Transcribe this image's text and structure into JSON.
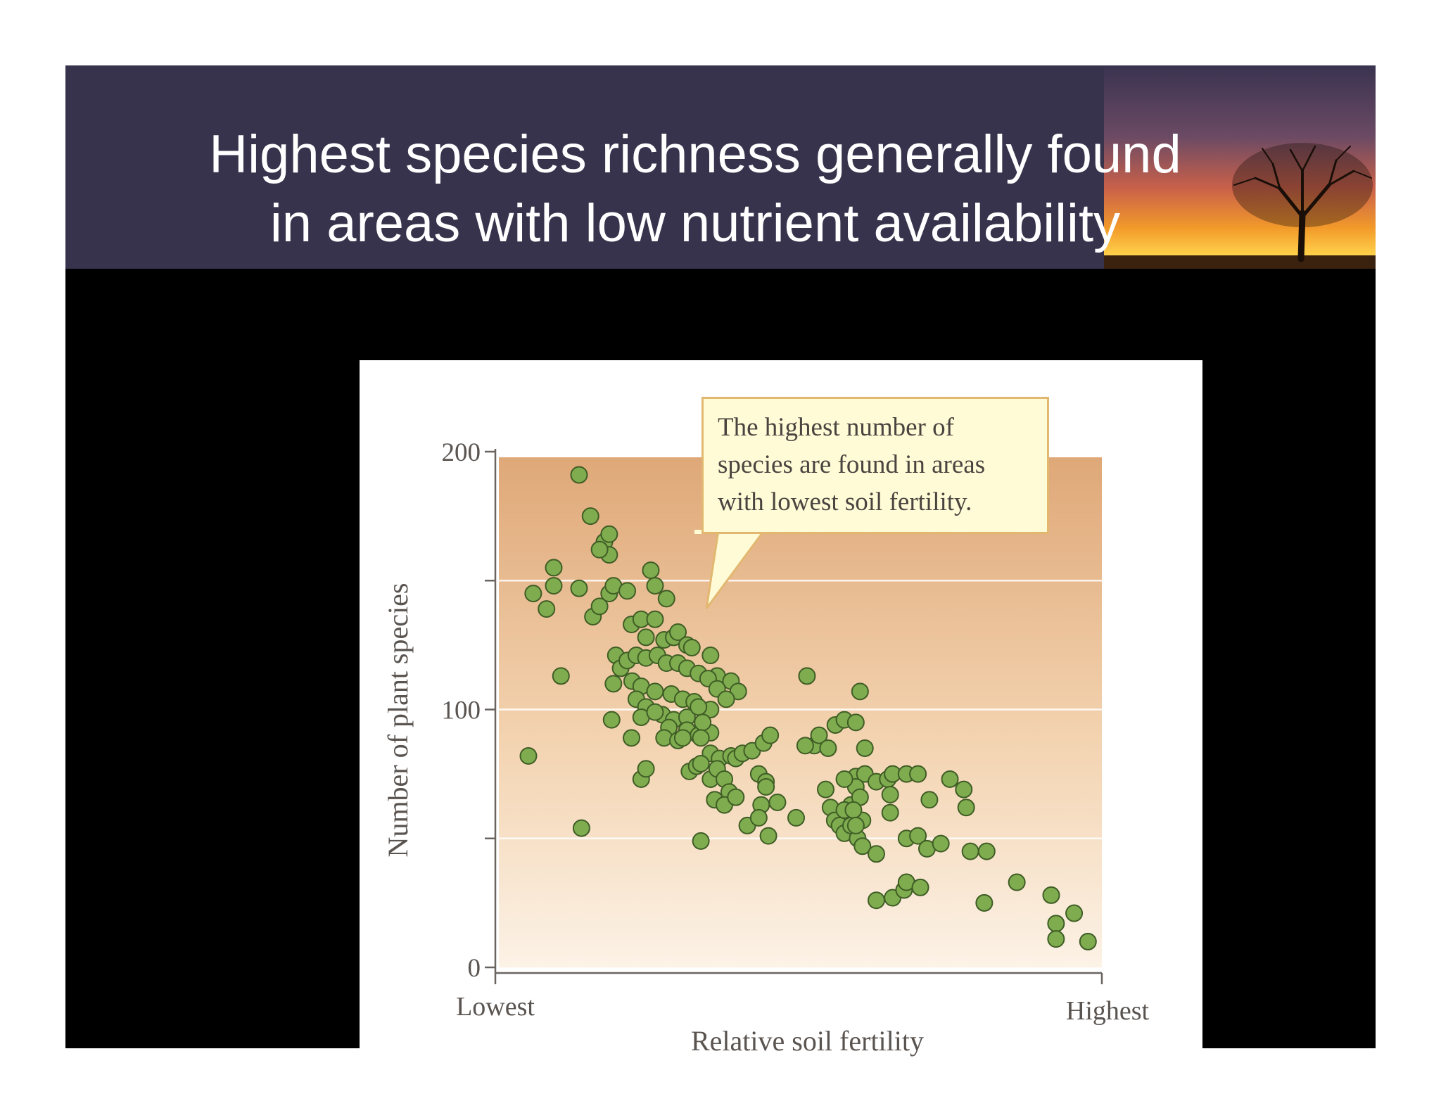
{
  "slide": {
    "title_lines": [
      "Highest species richness generally found",
      "in areas with low nutrient availability"
    ],
    "colors": {
      "banner": "#37334c",
      "background": "#000000",
      "figure": "#ffffff",
      "point": "#7fac4e",
      "point_stroke": "#3f5d26"
    }
  },
  "chart_data": {
    "type": "scatter",
    "xlabel": "Relative soil fertility",
    "ylabel": "Number of plant species",
    "x_tick_labels": [
      "Lowest",
      "Highest"
    ],
    "y_ticks": [
      0,
      100,
      200
    ],
    "xlim": [
      0,
      100
    ],
    "ylim": [
      0,
      200
    ],
    "grid": "horizontal",
    "annotation": "The highest number of species are found in areas with lowest soil fertility.",
    "annotation_lines": [
      "The highest number of",
      "species are found in areas",
      "with lowest soil fertility."
    ],
    "points": [
      [
        13.3,
        191
      ],
      [
        15.2,
        175
      ],
      [
        17.5,
        165
      ],
      [
        18.3,
        160
      ],
      [
        18.3,
        168
      ],
      [
        16.7,
        162
      ],
      [
        9.1,
        155
      ],
      [
        5.7,
        145
      ],
      [
        9.1,
        148
      ],
      [
        7.9,
        139
      ],
      [
        13.3,
        147
      ],
      [
        15.6,
        136
      ],
      [
        16.7,
        140
      ],
      [
        18.3,
        145
      ],
      [
        19.0,
        148
      ],
      [
        21.3,
        146
      ],
      [
        25.2,
        154
      ],
      [
        25.9,
        148
      ],
      [
        27.8,
        143
      ],
      [
        10.3,
        113
      ],
      [
        4.9,
        82
      ],
      [
        13.7,
        54
      ],
      [
        18.7,
        96
      ],
      [
        22.0,
        133
      ],
      [
        23.6,
        135
      ],
      [
        25.9,
        135
      ],
      [
        24.4,
        128
      ],
      [
        27.4,
        127
      ],
      [
        29.0,
        128
      ],
      [
        29.7,
        130
      ],
      [
        31.2,
        125
      ],
      [
        32.0,
        124
      ],
      [
        35.1,
        121
      ],
      [
        36.2,
        113
      ],
      [
        38.5,
        111
      ],
      [
        39.7,
        107
      ],
      [
        19.4,
        121
      ],
      [
        20.2,
        116
      ],
      [
        21.3,
        119
      ],
      [
        22.8,
        121
      ],
      [
        24.4,
        120
      ],
      [
        26.3,
        121
      ],
      [
        27.8,
        118
      ],
      [
        29.7,
        118
      ],
      [
        31.2,
        116
      ],
      [
        33.1,
        114
      ],
      [
        34.7,
        112
      ],
      [
        36.2,
        108
      ],
      [
        37.7,
        104
      ],
      [
        19.0,
        110
      ],
      [
        22.1,
        111
      ],
      [
        23.6,
        109
      ],
      [
        25.9,
        107
      ],
      [
        28.6,
        106
      ],
      [
        30.5,
        104
      ],
      [
        32.4,
        103
      ],
      [
        35.1,
        100
      ],
      [
        22.8,
        104
      ],
      [
        24.4,
        101
      ],
      [
        27.1,
        98
      ],
      [
        29.0,
        96
      ],
      [
        31.2,
        97
      ],
      [
        23.6,
        97
      ],
      [
        25.9,
        99
      ],
      [
        28.2,
        93
      ],
      [
        31.2,
        92
      ],
      [
        33.1,
        90
      ],
      [
        35.1,
        91
      ],
      [
        22.0,
        89
      ],
      [
        27.4,
        89
      ],
      [
        29.7,
        88
      ],
      [
        30.5,
        89
      ],
      [
        33.1,
        101
      ],
      [
        33.8,
        95
      ],
      [
        33.5,
        89
      ],
      [
        35.1,
        83
      ],
      [
        36.6,
        81
      ],
      [
        38.5,
        82
      ],
      [
        39.3,
        81
      ],
      [
        40.4,
        83
      ],
      [
        42.0,
        84
      ],
      [
        43.9,
        87
      ],
      [
        45.0,
        90
      ],
      [
        31.6,
        76
      ],
      [
        32.8,
        78
      ],
      [
        33.5,
        79
      ],
      [
        35.1,
        73
      ],
      [
        36.2,
        77
      ],
      [
        37.4,
        73
      ],
      [
        38.2,
        68
      ],
      [
        35.8,
        65
      ],
      [
        37.4,
        63
      ],
      [
        39.3,
        66
      ],
      [
        43.1,
        75
      ],
      [
        44.3,
        72
      ],
      [
        44.3,
        70
      ],
      [
        43.5,
        63
      ],
      [
        41.2,
        55
      ],
      [
        43.1,
        58
      ],
      [
        44.7,
        51
      ],
      [
        33.5,
        49
      ],
      [
        23.6,
        73
      ],
      [
        24.4,
        77
      ],
      [
        46.2,
        64
      ],
      [
        49.3,
        58
      ],
      [
        52.3,
        86
      ],
      [
        53.1,
        90
      ],
      [
        54.6,
        85
      ],
      [
        55.8,
        94
      ],
      [
        57.3,
        96
      ],
      [
        59.2,
        95
      ],
      [
        59.9,
        107
      ],
      [
        60.7,
        85
      ],
      [
        51.1,
        113
      ],
      [
        50.8,
        86
      ],
      [
        59.2,
        74
      ],
      [
        60.7,
        75
      ],
      [
        59.2,
        70
      ],
      [
        58.4,
        63
      ],
      [
        59.9,
        66
      ],
      [
        60.3,
        57
      ],
      [
        54.2,
        69
      ],
      [
        55.0,
        62
      ],
      [
        55.7,
        57
      ],
      [
        56.5,
        55
      ],
      [
        57.3,
        52
      ],
      [
        58.4,
        55
      ],
      [
        59.5,
        50
      ],
      [
        60.3,
        47
      ],
      [
        57.3,
        61
      ],
      [
        58.8,
        61
      ],
      [
        59.2,
        55
      ],
      [
        57.3,
        73
      ],
      [
        62.6,
        72
      ],
      [
        64.5,
        73
      ],
      [
        65.3,
        75
      ],
      [
        64.9,
        67
      ],
      [
        64.9,
        60
      ],
      [
        67.6,
        75
      ],
      [
        69.5,
        75
      ],
      [
        62.6,
        44
      ],
      [
        67.6,
        50
      ],
      [
        69.5,
        51
      ],
      [
        71.0,
        46
      ],
      [
        71.4,
        65
      ],
      [
        73.3,
        48
      ],
      [
        62.6,
        26
      ],
      [
        65.3,
        27
      ],
      [
        67.2,
        30
      ],
      [
        67.6,
        33
      ],
      [
        69.9,
        31
      ],
      [
        74.8,
        73
      ],
      [
        77.1,
        69
      ],
      [
        77.5,
        62
      ],
      [
        78.2,
        45
      ],
      [
        80.9,
        45
      ],
      [
        80.5,
        25
      ],
      [
        85.9,
        33
      ],
      [
        91.6,
        28
      ],
      [
        92.4,
        17
      ],
      [
        92.4,
        11
      ],
      [
        95.4,
        21
      ],
      [
        97.7,
        10
      ]
    ]
  }
}
